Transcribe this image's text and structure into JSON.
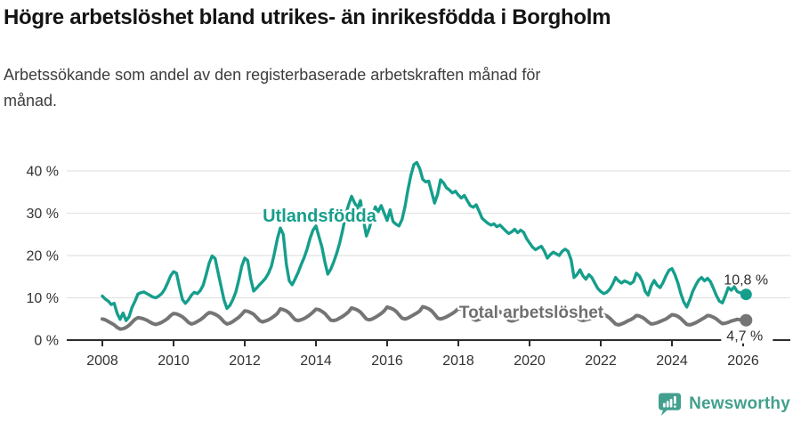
{
  "header": {
    "title": "Högre arbetslöshet bland utrikes- än inrikesfödda i Borgholm",
    "subtitle": "Arbetssökande som andel av den registerbaserade arbetskraften månad för månad.",
    "subtitle_line1": "Arbetssökande som andel av den registerbaserade arbetskraften månad för",
    "subtitle_line2": "månad."
  },
  "chart_data": {
    "type": "line",
    "title": "Högre arbetslöshet bland utrikes- än inrikesfödda i Borgholm",
    "subtitle": "Arbetssökande som andel av den registerbaserade arbetskraften månad för månad.",
    "xlabel": "",
    "ylabel": "",
    "grid": true,
    "legend_position": "inline-labels",
    "x_start_year": 2008,
    "x_interval": "monthly",
    "x_ticks": [
      2008,
      2010,
      2012,
      2014,
      2016,
      2018,
      2020,
      2022,
      2024,
      2026
    ],
    "y_ticks": [
      0,
      10,
      20,
      30,
      40
    ],
    "y_tick_labels": [
      "0 %",
      "10 %",
      "20 %",
      "30 %",
      "40 %"
    ],
    "ylim": [
      0,
      44
    ],
    "series": [
      {
        "name": "Utlandsfödda",
        "color": "#169e8c",
        "end_label": "10,8 %",
        "end_value": 10.8,
        "values": [
          10.4,
          9.7,
          9.2,
          8.4,
          8.7,
          6.3,
          4.9,
          6.4,
          4.6,
          5.5,
          7.7,
          9.2,
          10.9,
          11.2,
          11.4,
          11.0,
          10.6,
          10.2,
          10.0,
          10.4,
          11.0,
          12.0,
          13.5,
          15.2,
          16.2,
          15.8,
          12.5,
          9.6,
          8.7,
          9.5,
          10.6,
          11.3,
          11.0,
          11.7,
          13.0,
          15.5,
          18.2,
          19.9,
          19.3,
          16.0,
          12.8,
          9.5,
          7.5,
          8.2,
          9.6,
          11.4,
          14.2,
          17.5,
          19.4,
          18.8,
          14.5,
          11.6,
          12.3,
          13.1,
          13.8,
          14.6,
          15.8,
          17.5,
          20.5,
          24.0,
          26.5,
          25.0,
          18.0,
          14.0,
          13.1,
          14.5,
          16.0,
          17.8,
          19.5,
          21.5,
          24.0,
          26.0,
          27.0,
          24.5,
          22.0,
          18.5,
          15.6,
          16.8,
          18.5,
          20.5,
          23.0,
          26.0,
          29.5,
          32.0,
          34.0,
          32.5,
          31.2,
          33.0,
          28.5,
          24.6,
          26.5,
          29.0,
          31.5,
          30.4,
          31.8,
          30.0,
          28.3,
          30.8,
          28.0,
          27.4,
          27.0,
          28.5,
          31.5,
          35.5,
          39.0,
          41.5,
          42.0,
          40.5,
          38.0,
          37.4,
          37.6,
          35.0,
          32.4,
          34.5,
          37.9,
          37.2,
          36.0,
          35.5,
          34.8,
          35.2,
          34.3,
          33.6,
          34.2,
          33.0,
          31.8,
          31.4,
          32.0,
          30.5,
          28.8,
          28.2,
          27.6,
          27.2,
          27.5,
          26.8,
          27.2,
          26.5,
          25.8,
          25.2,
          25.6,
          26.2,
          25.4,
          26.0,
          25.5,
          24.0,
          23.0,
          22.0,
          21.4,
          21.8,
          22.2,
          21.0,
          19.4,
          20.2,
          20.8,
          20.4,
          20.0,
          21.0,
          21.5,
          21.0,
          19.0,
          14.8,
          15.5,
          16.6,
          15.2,
          14.4,
          15.5,
          14.8,
          13.5,
          12.2,
          11.5,
          11.0,
          11.3,
          12.0,
          13.2,
          14.8,
          14.0,
          13.5,
          14.0,
          13.7,
          13.3,
          13.8,
          15.8,
          15.2,
          13.8,
          11.5,
          10.6,
          12.8,
          14.1,
          13.0,
          12.4,
          13.6,
          15.2,
          16.5,
          16.9,
          15.5,
          13.5,
          11.0,
          9.0,
          7.8,
          9.5,
          11.5,
          13.0,
          14.2,
          14.8,
          14.0,
          14.6,
          13.8,
          12.2,
          10.5,
          9.2,
          8.8,
          10.5,
          12.4,
          11.8,
          12.6,
          11.5,
          11.2,
          11.0,
          10.8
        ]
      },
      {
        "name": "Total arbetslöshet",
        "color": "#757575",
        "end_label": "4,7 %",
        "end_value": 4.7,
        "values": [
          5.0,
          4.8,
          4.4,
          4.0,
          3.6,
          3.0,
          2.6,
          2.7,
          3.0,
          3.5,
          4.2,
          4.9,
          5.3,
          5.2,
          5.0,
          4.7,
          4.3,
          3.9,
          3.7,
          3.9,
          4.2,
          4.6,
          5.1,
          5.8,
          6.3,
          6.2,
          5.9,
          5.5,
          4.9,
          4.2,
          3.8,
          4.0,
          4.4,
          4.8,
          5.3,
          6.0,
          6.5,
          6.4,
          6.1,
          5.7,
          5.1,
          4.3,
          3.8,
          4.0,
          4.4,
          4.9,
          5.4,
          6.1,
          6.9,
          6.8,
          6.5,
          6.1,
          5.4,
          4.6,
          4.3,
          4.5,
          4.8,
          5.2,
          5.7,
          6.3,
          7.4,
          7.2,
          6.9,
          6.4,
          5.6,
          4.8,
          4.6,
          4.8,
          5.1,
          5.5,
          6.0,
          6.6,
          7.3,
          7.2,
          6.8,
          6.3,
          5.5,
          4.7,
          4.6,
          4.8,
          5.2,
          5.6,
          6.1,
          6.7,
          7.6,
          7.4,
          7.1,
          6.6,
          5.8,
          5.0,
          4.8,
          5.0,
          5.4,
          5.8,
          6.3,
          6.9,
          7.8,
          7.6,
          7.3,
          6.8,
          6.0,
          5.2,
          5.0,
          5.2,
          5.6,
          6.0,
          6.4,
          6.9,
          7.9,
          7.7,
          7.4,
          6.9,
          6.1,
          5.2,
          5.0,
          5.2,
          5.5,
          5.9,
          6.3,
          6.8,
          7.5,
          7.3,
          7.0,
          6.5,
          5.7,
          4.9,
          4.7,
          4.9,
          5.2,
          5.6,
          6.0,
          6.5,
          7.2,
          7.0,
          6.7,
          6.2,
          5.4,
          4.7,
          4.5,
          4.7,
          5.0,
          5.4,
          5.8,
          6.3,
          7.0,
          6.9,
          7.2,
          7.5,
          7.0,
          6.4,
          6.0,
          6.2,
          6.4,
          6.2,
          6.0,
          6.4,
          6.8,
          6.7,
          6.4,
          6.0,
          5.4,
          4.8,
          4.6,
          4.8,
          5.0,
          5.2,
          5.5,
          5.9,
          6.1,
          6.0,
          5.7,
          5.2,
          4.5,
          3.8,
          3.6,
          3.8,
          4.1,
          4.5,
          4.8,
          5.2,
          5.8,
          5.7,
          5.4,
          4.9,
          4.3,
          3.8,
          3.9,
          4.1,
          4.4,
          4.7,
          5.0,
          5.5,
          6.0,
          5.9,
          5.6,
          5.1,
          4.4,
          3.7,
          3.6,
          3.8,
          4.1,
          4.5,
          4.9,
          5.3,
          5.8,
          5.7,
          5.4,
          5.0,
          4.4,
          3.9,
          4.0,
          4.2,
          4.5,
          4.7,
          4.9,
          4.8,
          4.8,
          4.7
        ]
      }
    ],
    "colors": {
      "accent_teal": "#169e8c",
      "neutral_gray": "#757575",
      "grid": "#e2e2e2",
      "axis": "#2b2b2b",
      "tick_text": "#333333",
      "end_label_text": "#2e2e2e"
    }
  },
  "footer": {
    "brand": "Newsworthy"
  }
}
